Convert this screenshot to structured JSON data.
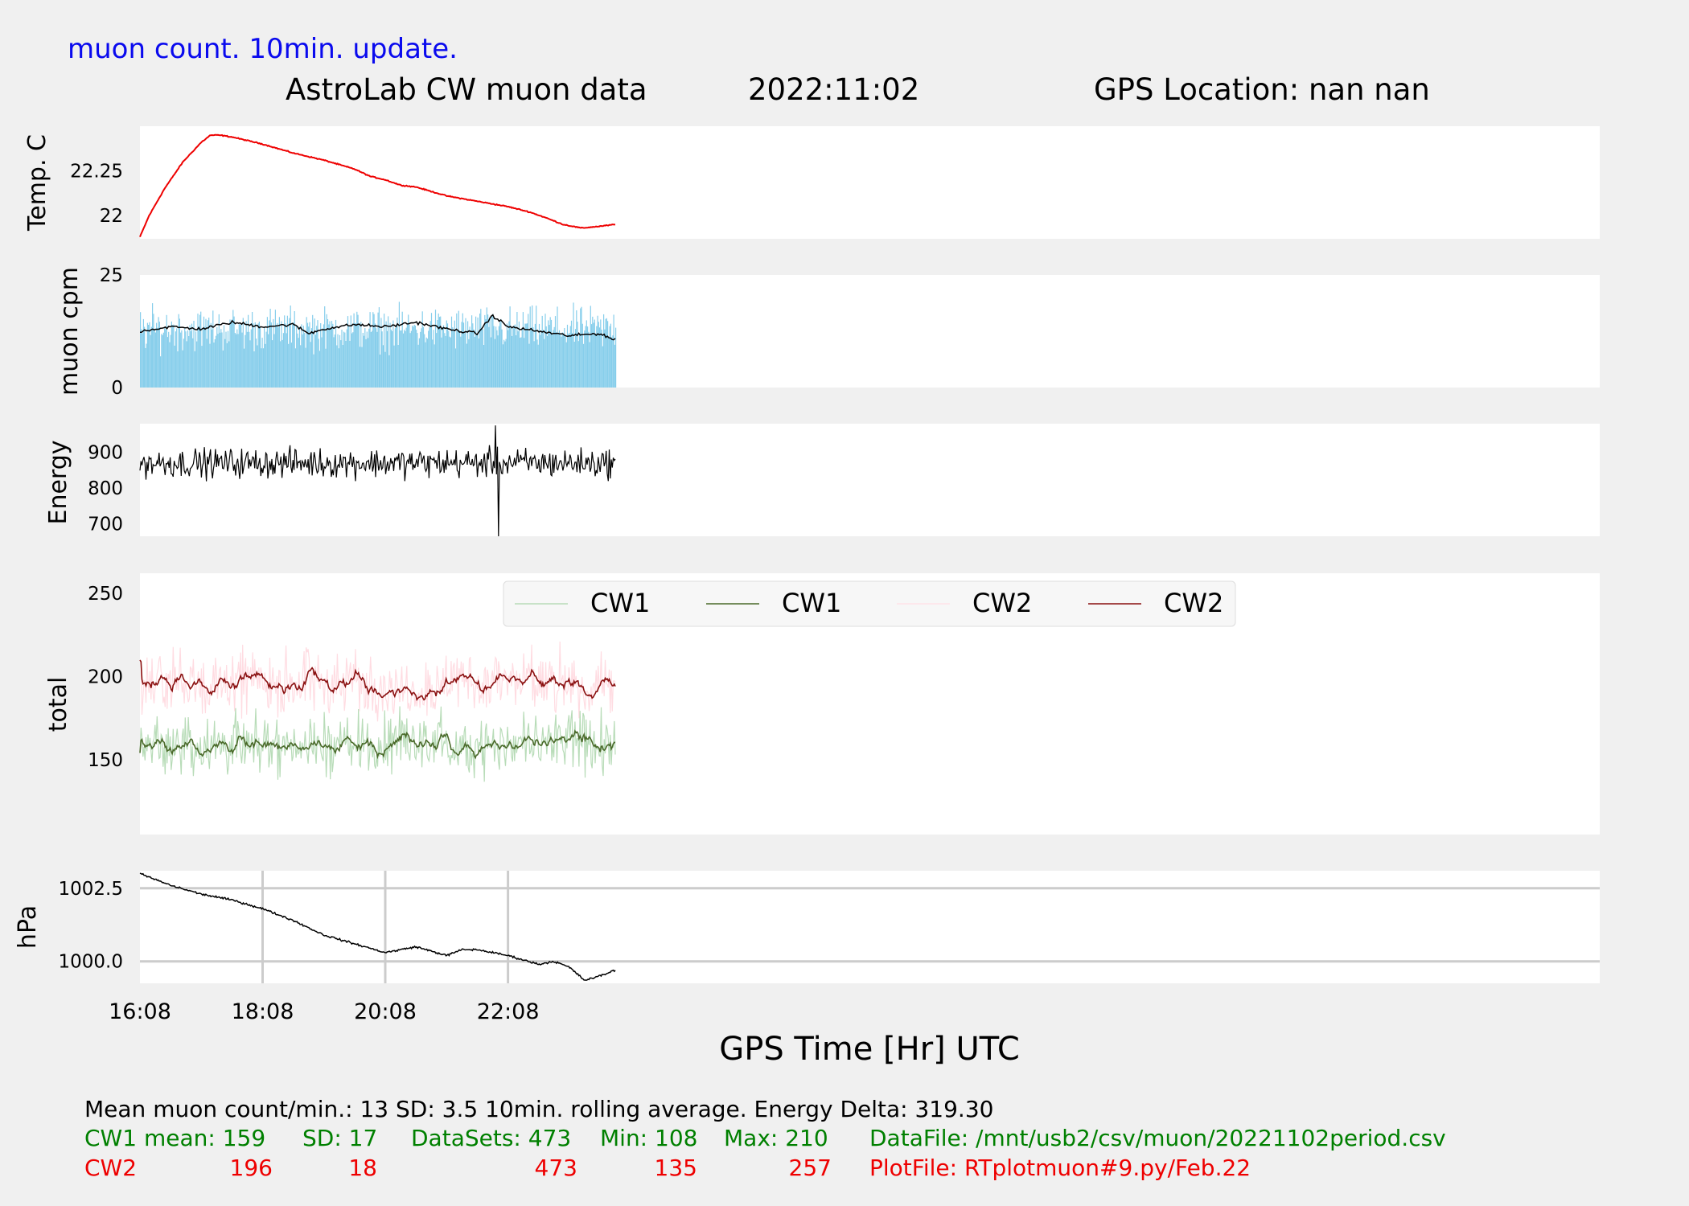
{
  "header": {
    "note": "muon count.  10min. update.",
    "title": "AstroLab CW muon data",
    "date": "2022:11:02",
    "gps_location": "GPS Location: nan   nan"
  },
  "colors": {
    "note": "#0a0aee",
    "temp": "#ee0000",
    "cpm_bars": "#87ceeb",
    "cpm_avg": "#000000",
    "energy": "#000000",
    "cw1_raw": "#b8dcb8",
    "cw1_avg": "#4a6a2a",
    "cw2_raw": "#ffe4e8",
    "cw2_avg": "#8a1010",
    "pressure": "#000000",
    "stats_cw1": "#008000",
    "stats_cw2": "#ee0000",
    "grid": "#cccccc"
  },
  "chart_data": [
    {
      "id": "temp",
      "type": "line",
      "ylabel": "Temp. C",
      "yticks": [
        22.0,
        22.25
      ],
      "ylim": [
        21.87,
        22.5
      ],
      "x_hours": [
        0,
        0.15,
        0.4,
        0.7,
        1.0,
        1.15,
        1.3,
        1.5,
        2.0,
        2.5,
        3.0,
        3.5,
        3.75,
        4.0,
        4.25,
        4.5,
        5.0,
        5.5,
        6.0,
        6.35,
        6.6,
        6.9,
        7.2,
        7.5,
        7.75
      ],
      "values": [
        21.88,
        22.0,
        22.15,
        22.3,
        22.41,
        22.45,
        22.45,
        22.44,
        22.4,
        22.35,
        22.31,
        22.26,
        22.22,
        22.2,
        22.17,
        22.16,
        22.11,
        22.08,
        22.05,
        22.02,
        21.99,
        21.95,
        21.93,
        21.94,
        21.95
      ]
    },
    {
      "id": "cpm",
      "type": "bar+line",
      "ylabel": "muon cpm",
      "yticks": [
        0,
        25
      ],
      "ylim": [
        0,
        25
      ],
      "rolling_avg_x_hours": [
        0,
        0.5,
        1.0,
        1.5,
        2.0,
        2.5,
        2.75,
        3.0,
        3.5,
        4.0,
        4.5,
        5.0,
        5.5,
        5.75,
        6.0,
        6.5,
        7.0,
        7.5,
        7.75
      ],
      "rolling_avg": [
        12.5,
        13.5,
        13,
        14.5,
        13.5,
        14,
        12,
        13,
        14,
        13.5,
        14.5,
        13,
        12,
        16,
        13.5,
        12.5,
        11.5,
        12,
        10.5
      ]
    },
    {
      "id": "energy",
      "type": "line",
      "ylabel": "Energy",
      "yticks": [
        700,
        800,
        900
      ],
      "ylim": [
        665,
        980
      ],
      "mean": 870,
      "spread": 60,
      "min_point": {
        "x_hours": 5.85,
        "value": 665
      },
      "max_point": {
        "x_hours": 5.8,
        "value": 975
      }
    },
    {
      "id": "total",
      "type": "line",
      "ylabel": "total",
      "yticks": [
        150,
        200,
        250
      ],
      "ylim": [
        105,
        262
      ],
      "legend_location": "upper-center",
      "series": [
        {
          "name": "CW1",
          "role": "raw",
          "mean": 159,
          "sd": 17,
          "min": 108,
          "max": 210
        },
        {
          "name": "CW1",
          "role": "rolling_avg",
          "mean": 159
        },
        {
          "name": "CW2",
          "role": "raw",
          "mean": 196,
          "sd": 18,
          "min": 135,
          "max": 257
        },
        {
          "name": "CW2",
          "role": "rolling_avg",
          "mean": 196
        }
      ]
    },
    {
      "id": "pressure",
      "type": "line",
      "ylabel": "hPa",
      "yticks": [
        1000.0,
        1002.5
      ],
      "ytick_labels": [
        "1000.0",
        "1002.5"
      ],
      "ylim": [
        999.25,
        1003.1
      ],
      "grid": true,
      "x_grid_hours": [
        2,
        4,
        6
      ],
      "x_hours": [
        0,
        0.5,
        1.0,
        1.5,
        2.0,
        2.5,
        3.0,
        3.5,
        4.0,
        4.5,
        5.0,
        5.25,
        5.5,
        6.0,
        6.5,
        6.75,
        7.0,
        7.25,
        7.5,
        7.75
      ],
      "values": [
        1003.0,
        1002.6,
        1002.3,
        1002.1,
        1001.8,
        1001.4,
        1000.9,
        1000.6,
        1000.3,
        1000.5,
        1000.2,
        1000.4,
        1000.4,
        1000.2,
        999.9,
        1000.0,
        999.8,
        999.35,
        999.5,
        999.7
      ]
    }
  ],
  "xaxis": {
    "label": "GPS Time  [Hr] UTC",
    "tick_labels": [
      "16:08",
      "18:08",
      "20:08",
      "22:08"
    ],
    "tick_hours": [
      0,
      2,
      4,
      6
    ],
    "range_hours": [
      0,
      23.8
    ],
    "data_end_hours": 7.75
  },
  "footer": {
    "line1": "Mean muon count/min.: 13  SD: 3.5   10min. rolling average.    Energy Delta:  319.30",
    "cw1": {
      "name": "CW1 mean: 159",
      "sd": "SD: 17",
      "datasets": "DataSets: 473",
      "min": "Min: 108",
      "max": "Max: 210",
      "file": "DataFile: /mnt/usb2/csv/muon/20221102period.csv"
    },
    "cw2": {
      "name": "CW2",
      "mean": "196",
      "sd": "18",
      "datasets": "473",
      "min": "135",
      "max": "257",
      "file": "PlotFile: RTplotmuon#9.py/Feb.22"
    }
  }
}
